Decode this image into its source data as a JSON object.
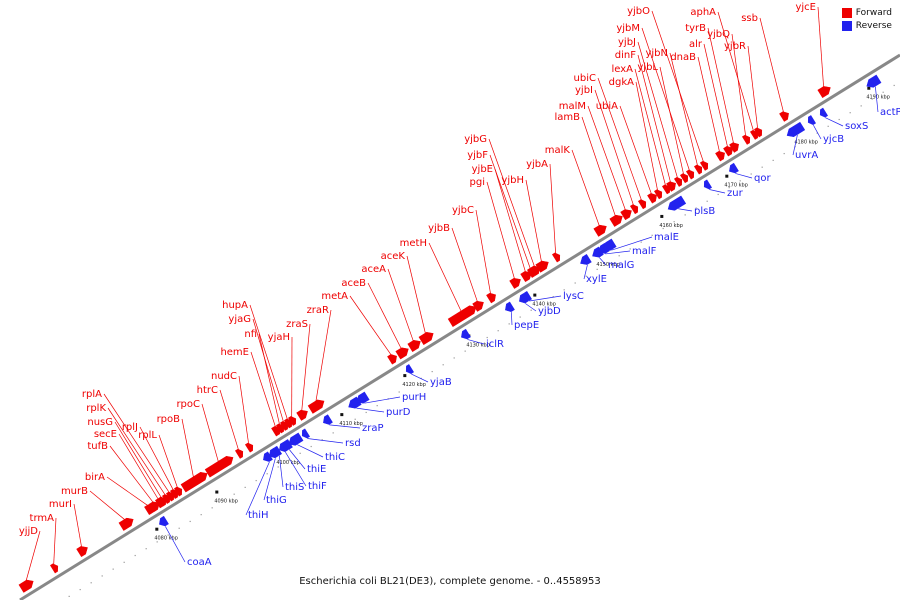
{
  "caption": "Escherichia coli BL21(DE3), complete genome. - 0..4558953",
  "legend": {
    "forward_label": "Forward",
    "reverse_label": "Reverse",
    "forward_color": "#ee0000",
    "reverse_color": "#2222ee"
  },
  "ticks": [
    "4080 kbp",
    "4090 kbp",
    "4100 kbp",
    "4110 kbp",
    "4120 kbp",
    "4130 kbp",
    "4140 kbp",
    "4150 kbp",
    "4160 kbp",
    "4170 kbp",
    "4180 kbp",
    "4190 kbp"
  ],
  "forward_genes": [
    "yjjD",
    "trmA",
    "murI",
    "murB",
    "birA",
    "tufB",
    "secE",
    "nusG",
    "rplK",
    "rplA",
    "rplJ",
    "rplL",
    "rpoB",
    "rpoC",
    "htrC",
    "nudC",
    "hemE",
    "nfi",
    "yjaG",
    "hupA",
    "yjaH",
    "zraS",
    "zraR",
    "metA",
    "aceB",
    "aceA",
    "aceK",
    "metH",
    "yjbB",
    "yjbC",
    "pgi",
    "yjbE",
    "yjbF",
    "yjbG",
    "yjbH",
    "yjbA",
    "malK",
    "lamB",
    "malM",
    "yjbI",
    "ubiC",
    "ubiA",
    "dgkA",
    "lexA",
    "dinF",
    "yjbJ",
    "yjbL",
    "yjbM",
    "yjbN",
    "yjbO",
    "dnaB",
    "alr",
    "tyrB",
    "yjbQ",
    "aphA",
    "yjbR",
    "ssb",
    "yjcE"
  ],
  "reverse_genes": [
    "coaA",
    "thiH",
    "thiG",
    "thiS",
    "thiF",
    "thiE",
    "thiC",
    "rsd",
    "zraP",
    "purD",
    "purH",
    "yjaB",
    "iclR",
    "pepE",
    "yjbD",
    "lysC",
    "xylE",
    "malG",
    "malF",
    "malE",
    "plsB",
    "zur",
    "qor",
    "uvrA",
    "yjcB",
    "soxS",
    "actP"
  ]
}
